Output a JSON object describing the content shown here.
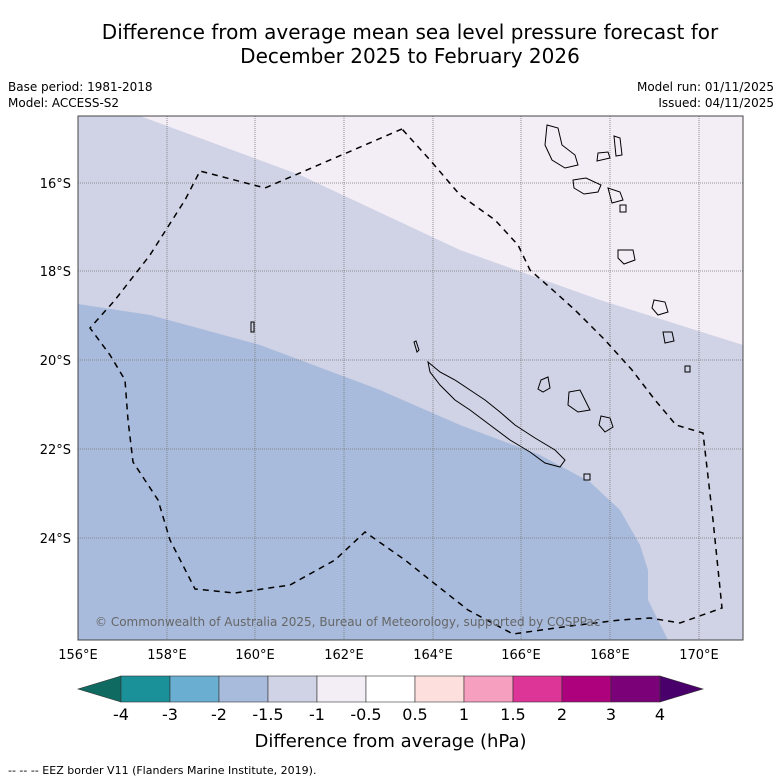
{
  "title": {
    "line1": "Difference from average mean sea level pressure forecast for",
    "line2": "December 2025 to February 2026"
  },
  "meta": {
    "base_period": "Base period: 1981-2018",
    "model": "Model: ACCESS-S2",
    "model_run": "Model run: 01/11/2025",
    "issued": "Issued: 04/11/2025"
  },
  "map": {
    "lat_labels": [
      "16°S",
      "18°S",
      "20°S",
      "22°S",
      "24°S"
    ],
    "lon_labels": [
      "156°E",
      "158°E",
      "160°E",
      "162°E",
      "164°E",
      "166°E",
      "168°E",
      "170°E"
    ],
    "copyright": "© Commonwealth of Australia 2025, Bureau of Meteorology, supported by COSPPac"
  },
  "colorbar": {
    "ticks": [
      "-4",
      "-3",
      "-2",
      "-1.5",
      "-1",
      "-0.5",
      "0.5",
      "1",
      "1.5",
      "2",
      "3",
      "4"
    ],
    "colors": [
      "#0f6b62",
      "#1a9199",
      "#6aaed2",
      "#a8bbdc",
      "#d0d2e5",
      "#f3edf6",
      "#ffffff",
      "#fde0dd",
      "#f79fbf",
      "#dd3497",
      "#ae017e",
      "#7a0177",
      "#49006a"
    ],
    "title": "Difference from average (hPa)"
  },
  "legend": {
    "eez": "--  --  -- EEZ border V11 (Flanders Marine Institute, 2019)."
  }
}
